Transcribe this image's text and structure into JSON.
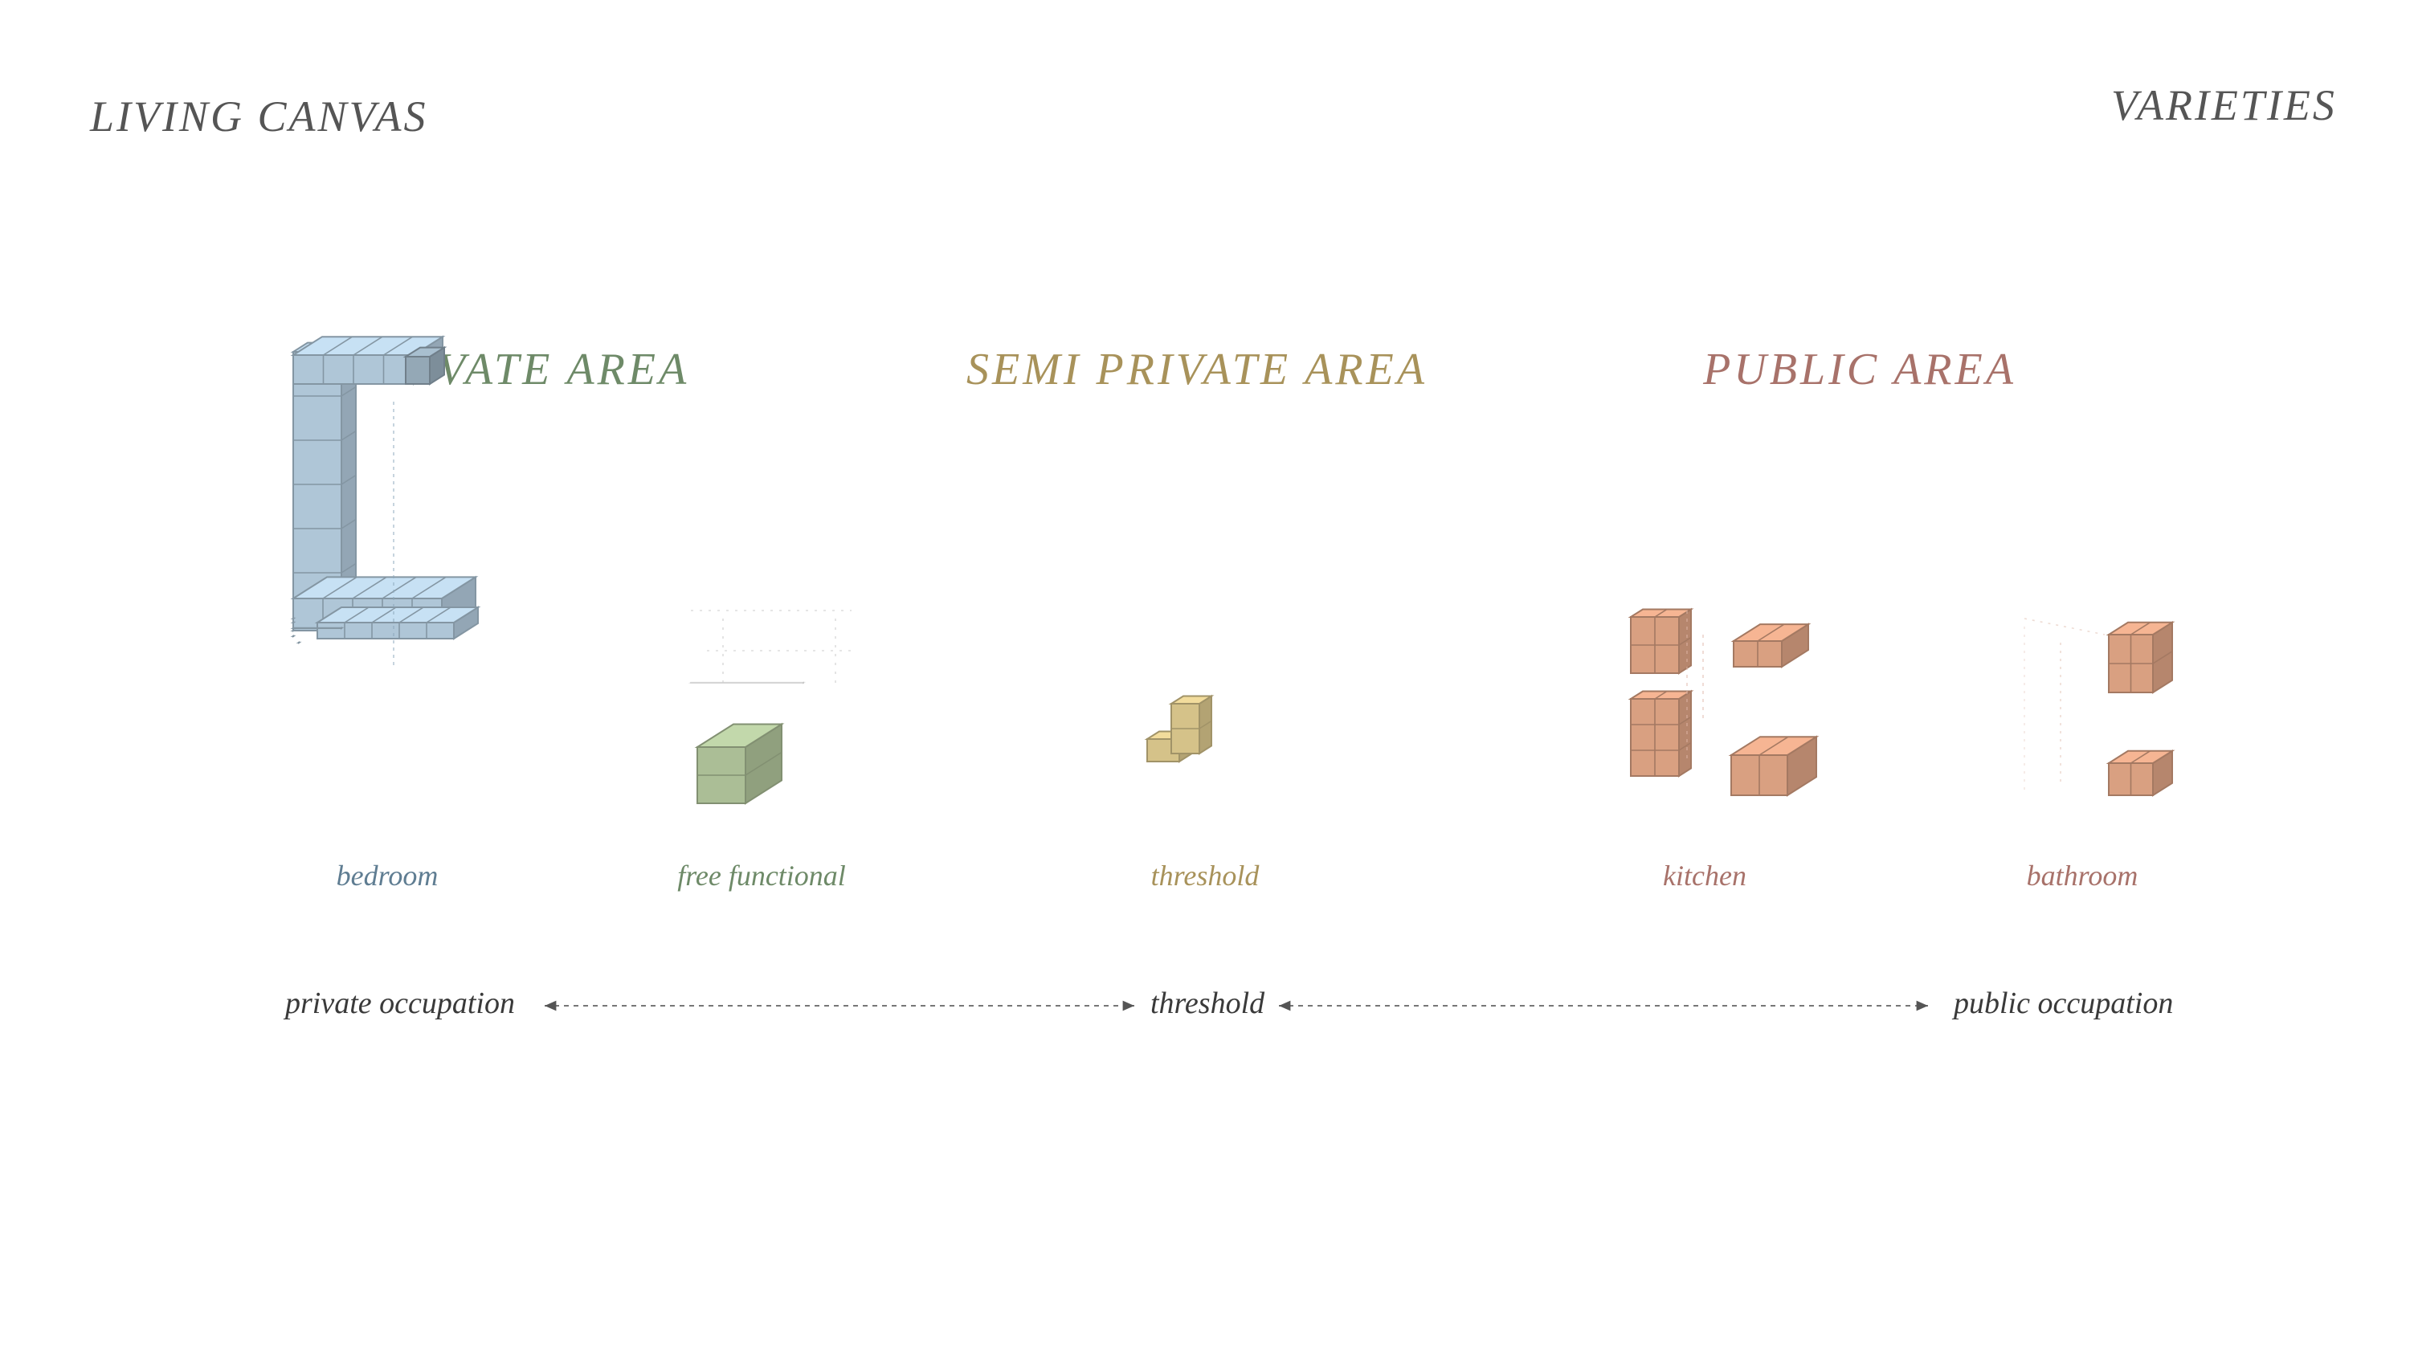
{
  "header": {
    "left_title": "LIVING CANVAS",
    "right_title": "VARIETIES"
  },
  "areas": [
    {
      "title": "PRIVATE AREA",
      "color": "#6e8a68"
    },
    {
      "title": "SEMI PRIVATE AREA",
      "color": "#a8925a"
    },
    {
      "title": "PUBLIC AREA",
      "color": "#a8726a"
    }
  ],
  "modules": [
    {
      "label": "bedroom",
      "color": "#5f7d92",
      "fill": "#b8d0e2",
      "icon": "bedroom-modules-icon"
    },
    {
      "label": "free functional",
      "color": "#6e8a68",
      "fill": "#b4c89e",
      "icon": "free-functional-modules-icon"
    },
    {
      "label": "threshold",
      "color": "#a8925a",
      "fill": "#e0cc90",
      "icon": "threshold-modules-icon"
    },
    {
      "label": "kitchen",
      "color": "#a8726a",
      "fill": "#e4a888",
      "icon": "kitchen-modules-icon"
    },
    {
      "label": "bathroom",
      "color": "#a8726a",
      "fill": "#e4a888",
      "icon": "bathroom-modules-icon"
    }
  ],
  "scale": {
    "left": "private occupation",
    "middle": "threshold",
    "right": "public occupation"
  }
}
